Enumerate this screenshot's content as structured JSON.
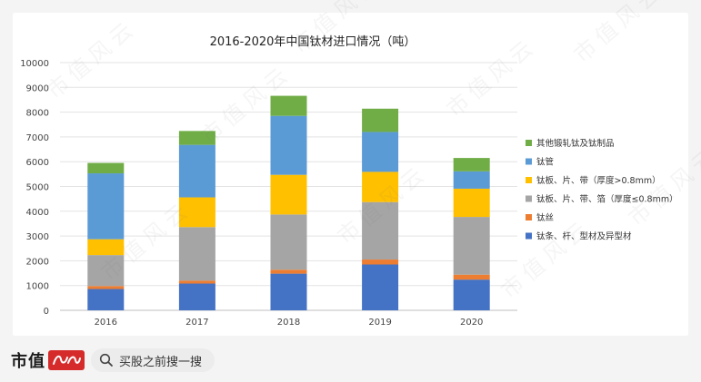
{
  "chart_data": {
    "type": "bar",
    "stacked": true,
    "title": "2016-2020年中国钛材进口情况（吨）",
    "categories": [
      "2016",
      "2017",
      "2018",
      "2019",
      "2020"
    ],
    "ylim": [
      0,
      10000
    ],
    "yticks": [
      0,
      1000,
      2000,
      3000,
      4000,
      5000,
      6000,
      7000,
      8000,
      9000,
      10000
    ],
    "grid": true,
    "legend_position": "right",
    "series": [
      {
        "name": "钛条、杆、型材及异型材",
        "color": "#4472c4",
        "values": [
          860,
          1080,
          1480,
          1850,
          1240
        ]
      },
      {
        "name": "钛丝",
        "color": "#ed7d31",
        "values": [
          120,
          120,
          160,
          200,
          200
        ]
      },
      {
        "name": "钛板、片、带、箔（厚度≤0.8mm）",
        "color": "#a5a5a5",
        "values": [
          1250,
          2160,
          2230,
          2320,
          2330
        ]
      },
      {
        "name": "钛板、片、带（厚度>0.8mm）",
        "color": "#ffc000",
        "values": [
          640,
          1200,
          1600,
          1220,
          1140
        ]
      },
      {
        "name": "钛管",
        "color": "#5b9bd5",
        "values": [
          2660,
          2120,
          2380,
          1610,
          700
        ]
      },
      {
        "name": "其他锻轧钛及钛制品",
        "color": "#70ad47",
        "values": [
          420,
          560,
          810,
          940,
          540
        ]
      }
    ]
  },
  "footer": {
    "brand": "市值",
    "search_placeholder": "买股之前搜一搜",
    "search_icon": "search-icon",
    "logo_icon": "brand-logo-icon"
  },
  "watermark": "市值风云"
}
